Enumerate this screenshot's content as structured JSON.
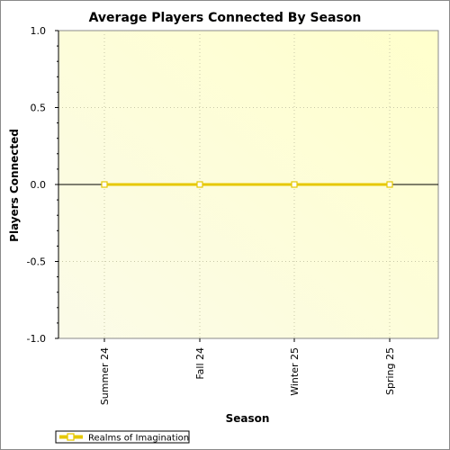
{
  "chart_data": {
    "type": "line",
    "title": "Average Players Connected By Season",
    "xlabel": "Season",
    "ylabel": "Players Connected",
    "categories": [
      "Summer 24",
      "Fall 24",
      "Winter 25",
      "Spring 25"
    ],
    "ylim": [
      -1.0,
      1.0
    ],
    "yticks": [
      1.0,
      0.5,
      0.0,
      -0.5,
      -1.0
    ],
    "ytick_labels": [
      "1.0",
      "0.5",
      "0.0",
      "-0.5",
      "-1.0"
    ],
    "grid": true,
    "legend_position": "bottom-left",
    "series": [
      {
        "name": "Realms of Imagination",
        "values": [
          0,
          0,
          0,
          0
        ],
        "color": "#e6c800",
        "marker": "square"
      }
    ]
  },
  "colors": {
    "plot_background_left": "#fbfbe8",
    "plot_background_right": "#ffffcc",
    "zero_line": "#000000",
    "grid": "#c8c8a8"
  }
}
